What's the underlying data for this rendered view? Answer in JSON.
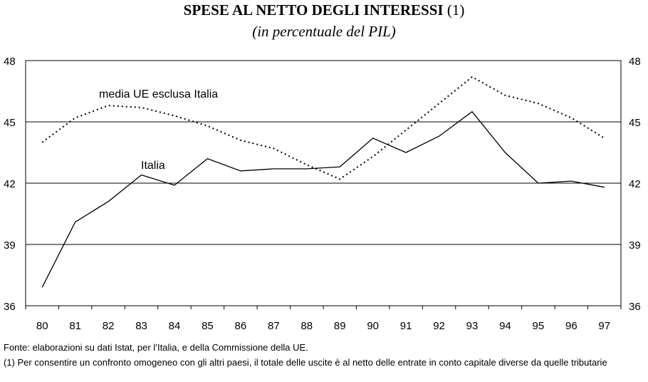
{
  "title": {
    "main": "SPESE AL NETTO DEGLI INTERESSI",
    "ref": "(1)",
    "subtitle": "(in percentuale del PIL)"
  },
  "chart_data": {
    "type": "line",
    "x": [
      "80",
      "81",
      "82",
      "83",
      "84",
      "85",
      "86",
      "87",
      "88",
      "89",
      "90",
      "91",
      "92",
      "93",
      "94",
      "95",
      "96",
      "97"
    ],
    "ylim": [
      36,
      48
    ],
    "yticks": [
      36,
      39,
      42,
      45,
      48
    ],
    "grid": true,
    "series": [
      {
        "name": "media UE esclusa Italia",
        "style": "dotted",
        "color": "#000000",
        "values": [
          44.0,
          45.2,
          45.8,
          45.7,
          45.3,
          44.8,
          44.1,
          43.7,
          42.9,
          42.2,
          43.3,
          44.6,
          45.9,
          47.2,
          46.3,
          45.9,
          45.2,
          44.2
        ]
      },
      {
        "name": "Italia",
        "style": "solid",
        "color": "#000000",
        "values": [
          36.9,
          40.1,
          41.1,
          42.4,
          41.9,
          43.2,
          42.6,
          42.7,
          42.7,
          42.8,
          44.2,
          43.5,
          44.3,
          45.5,
          43.5,
          42.0,
          42.1,
          41.8
        ]
      }
    ]
  },
  "notes": {
    "source": "Fonte: elaborazioni su dati Istat, per l’Italia, e della Commissione della UE.",
    "footnote": "(1) Per consentire un confronto omogeneo con gli altri paesi, il totale delle uscite è al netto delle entrate in conto capitale diverse da quelle tributarie"
  }
}
